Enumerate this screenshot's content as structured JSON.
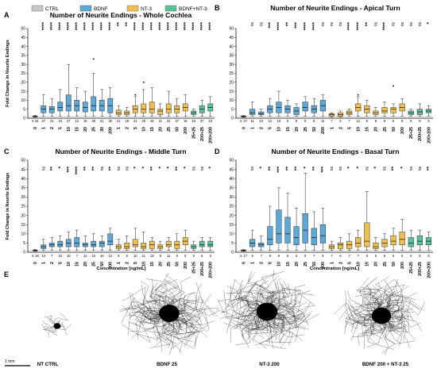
{
  "legend": {
    "items": [
      {
        "label": "CTRL",
        "color": "#c8c8c8"
      },
      {
        "label": "BDNF",
        "color": "#5aa9d8"
      },
      {
        "label": "NT-3",
        "color": "#f1c04c"
      },
      {
        "label": "BDNF+NT-3",
        "color": "#58c49a"
      }
    ]
  },
  "chart_data": [
    {
      "type": "box",
      "letter": "A",
      "title": "Number of Neurite Endings - Whole Cochlea",
      "ylabel": "Fold Change in Neurite Endings",
      "ylim": [
        0,
        50
      ],
      "yticks": [
        0,
        5,
        10,
        15,
        20,
        25,
        30,
        35,
        40,
        45,
        50
      ],
      "categories": [
        "0",
        "1",
        "2",
        "5",
        "10",
        "15",
        "20",
        "25",
        "30",
        "200",
        "1",
        "2",
        "5",
        "10",
        "15",
        "20",
        "25",
        "50",
        "200",
        "25+25",
        "200+25",
        "200+200"
      ],
      "groups": [
        "CTRL",
        "BDNF",
        "BDNF",
        "BDNF",
        "BDNF",
        "BDNF",
        "BDNF",
        "BDNF",
        "BDNF",
        "BDNF",
        "NT-3",
        "NT-3",
        "NT-3",
        "NT-3",
        "NT-3",
        "NT-3",
        "NT-3",
        "NT-3",
        "NT-3",
        "BDNF+NT-3",
        "BDNF+NT-3",
        "BDNF+NT-3"
      ],
      "n": [
        "n: 51",
        "27",
        "21",
        "24",
        "27",
        "12",
        "18",
        "25",
        "21",
        "30",
        "21",
        "18",
        "21",
        "25",
        "15",
        "21",
        "24",
        "27",
        "18",
        "18",
        "27",
        "18"
      ],
      "significance": [
        "",
        "****",
        "****",
        "****",
        "****",
        "****",
        "****",
        "****",
        "****",
        "****",
        "**",
        "**",
        "****",
        "****",
        "****",
        "****",
        "****",
        "****",
        "****",
        "****",
        "****",
        "****"
      ],
      "boxes": [
        [
          0.5,
          0.8,
          1,
          1.2,
          1.5
        ],
        [
          1,
          3,
          5,
          7,
          13
        ],
        [
          1,
          3,
          5,
          6.5,
          11
        ],
        [
          1,
          4,
          6,
          9,
          16
        ],
        [
          1,
          4,
          7,
          13,
          30
        ],
        [
          1,
          4,
          7,
          10,
          17
        ],
        [
          1,
          3.5,
          6,
          9,
          15
        ],
        [
          1,
          4,
          7,
          12,
          25
        ],
        [
          1,
          4,
          7,
          10,
          16
        ],
        [
          1,
          3,
          7,
          11,
          17
        ],
        [
          1,
          2,
          3,
          4.5,
          7
        ],
        [
          1,
          2,
          3,
          4,
          6
        ],
        [
          1,
          3,
          5,
          7,
          12
        ],
        [
          1,
          3,
          5,
          8,
          16
        ],
        [
          1,
          3,
          5,
          9,
          17
        ],
        [
          1,
          2,
          4,
          5,
          8
        ],
        [
          1,
          3,
          5,
          8,
          15
        ],
        [
          1,
          3,
          5,
          7,
          11
        ],
        [
          1,
          4,
          6,
          8,
          13
        ],
        [
          1,
          2,
          3,
          4,
          5
        ],
        [
          1,
          3,
          5,
          7,
          10
        ],
        [
          1,
          4,
          6,
          8,
          12
        ]
      ],
      "outliers": [
        [],
        [],
        [],
        [],
        [],
        [],
        [],
        [
          33
        ],
        [],
        [],
        [],
        [],
        [
          13
        ],
        [
          20
        ],
        [],
        [],
        [],
        [],
        [],
        [],
        [],
        []
      ]
    },
    {
      "type": "box",
      "letter": "B",
      "title": "Number of Neurite Endings - Apical Turn",
      "ylabel": "",
      "ylim": [
        0,
        50
      ],
      "yticks": [
        0,
        5,
        10,
        15,
        20,
        25,
        30,
        35,
        40,
        45,
        50
      ],
      "categories": [
        "0",
        "1",
        "2",
        "5",
        "10",
        "15",
        "20",
        "25",
        "50",
        "200",
        "1",
        "2",
        "5",
        "10",
        "15",
        "20",
        "25",
        "50",
        "200",
        "25+25",
        "200+25",
        "200+200"
      ],
      "groups": [
        "CTRL",
        "BDNF",
        "BDNF",
        "BDNF",
        "BDNF",
        "BDNF",
        "BDNF",
        "BDNF",
        "BDNF",
        "BDNF",
        "NT-3",
        "NT-3",
        "NT-3",
        "NT-3",
        "NT-3",
        "NT-3",
        "NT-3",
        "NT-3",
        "NT-3",
        "BDNF+NT-3",
        "BDNF+NT-3",
        "BDNF+NT-3"
      ],
      "n": [
        "n: 27",
        "11",
        "10",
        "12",
        "10",
        "6",
        "8",
        "9",
        "8",
        "11",
        "7",
        "6",
        "7",
        "12",
        "8",
        "8",
        "9",
        "6",
        "9",
        "6",
        "9",
        "6"
      ],
      "significance": [
        "",
        "ns",
        "ns",
        "***",
        "****",
        "**",
        "***",
        "****",
        "****",
        "ns",
        "ns",
        "ns",
        "****",
        "****",
        "**",
        "ns",
        "****",
        "ns",
        "ns",
        "ns",
        "ns",
        "*"
      ],
      "boxes": [
        [
          0.5,
          0.8,
          1,
          1.2,
          1.5
        ],
        [
          1,
          2,
          3,
          5,
          9
        ],
        [
          1,
          2,
          2.5,
          3.5,
          5
        ],
        [
          1,
          3,
          5,
          7,
          11
        ],
        [
          1,
          3,
          6,
          9,
          15
        ],
        [
          1,
          3,
          5,
          7,
          10
        ],
        [
          1,
          2,
          4,
          6,
          8
        ],
        [
          1,
          4,
          6,
          9,
          12
        ],
        [
          1,
          3,
          5,
          7,
          11
        ],
        [
          1,
          4,
          7,
          10,
          13
        ],
        [
          0.5,
          1,
          2,
          2.5,
          3
        ],
        [
          0.5,
          1,
          2,
          3,
          4
        ],
        [
          1,
          2,
          3,
          4,
          5
        ],
        [
          1,
          4,
          6,
          8,
          12
        ],
        [
          1,
          3,
          5,
          7,
          10
        ],
        [
          1,
          2,
          3,
          4,
          6
        ],
        [
          1,
          3,
          4,
          6,
          9
        ],
        [
          1,
          3,
          5,
          6,
          8
        ],
        [
          1,
          4,
          6,
          8,
          11
        ],
        [
          1,
          2,
          3,
          4,
          5
        ],
        [
          1,
          2,
          3.5,
          5,
          8
        ],
        [
          1,
          3,
          4,
          5,
          7
        ]
      ],
      "outliers": [
        [],
        [],
        [],
        [],
        [],
        [],
        [],
        [],
        [],
        [],
        [],
        [],
        [],
        [
          13
        ],
        [],
        [],
        [],
        [
          18
        ],
        [],
        [],
        [],
        []
      ]
    },
    {
      "type": "box",
      "letter": "C",
      "title": "Number of Neurite Endings - Middle Turn",
      "ylabel": "Fold Change in Neurite Endings",
      "ylim": [
        0,
        50
      ],
      "yticks": [
        0,
        5,
        10,
        15,
        20,
        25,
        30,
        35,
        40,
        45,
        50
      ],
      "categories": [
        "0",
        "1",
        "2",
        "5",
        "10",
        "15",
        "20",
        "25",
        "50",
        "200",
        "1",
        "2",
        "5",
        "10",
        "15",
        "20",
        "25",
        "50",
        "200",
        "25+25",
        "200+25",
        "200+200"
      ],
      "groups": [
        "CTRL",
        "BDNF",
        "BDNF",
        "BDNF",
        "BDNF",
        "BDNF",
        "BDNF",
        "BDNF",
        "BDNF",
        "BDNF",
        "NT-3",
        "NT-3",
        "NT-3",
        "NT-3",
        "NT-3",
        "NT-3",
        "NT-3",
        "NT-3",
        "NT-3",
        "BDNF+NT-3",
        "BDNF+NT-3",
        "BDNF+NT-3"
      ],
      "n": [
        "n: 28",
        "10",
        "7",
        "10",
        "10",
        "7",
        "12",
        "10",
        "10",
        "12",
        "9",
        "9",
        "10",
        "11",
        "13",
        "9",
        "11",
        "9",
        "6",
        "6",
        "6",
        "6"
      ],
      "significance": [
        "",
        "ns",
        "**",
        "*",
        "***",
        "****",
        "**",
        "**",
        "ns",
        "**",
        "ns",
        "ns",
        "*",
        "*",
        "**",
        "*",
        "*",
        "**",
        "*",
        "ns",
        "ns",
        "*"
      ],
      "boxes": [
        [
          0.5,
          0.8,
          1,
          1.2,
          1.5
        ],
        [
          1,
          2,
          3,
          4,
          7
        ],
        [
          1,
          3,
          4,
          5,
          8
        ],
        [
          1,
          3,
          4,
          6,
          9
        ],
        [
          1,
          3,
          5,
          7,
          11
        ],
        [
          1,
          3,
          5,
          8,
          12
        ],
        [
          1,
          3,
          4,
          5,
          9
        ],
        [
          1,
          3,
          4,
          6,
          10
        ],
        [
          1,
          3,
          5,
          6,
          9
        ],
        [
          1,
          4,
          6,
          10,
          13
        ],
        [
          1,
          2,
          3,
          4,
          7
        ],
        [
          1,
          2,
          3,
          5,
          9
        ],
        [
          1,
          3,
          4,
          7,
          13
        ],
        [
          1,
          2,
          3,
          5,
          11
        ],
        [
          1,
          2,
          4,
          6,
          8
        ],
        [
          1,
          2,
          3,
          4,
          6
        ],
        [
          1,
          3,
          4,
          6,
          8
        ],
        [
          1,
          2,
          4,
          6,
          10
        ],
        [
          1,
          4,
          6,
          8,
          12
        ],
        [
          1,
          2,
          3,
          4,
          6
        ],
        [
          1,
          3,
          4,
          6,
          8
        ],
        [
          1,
          3,
          4,
          6,
          8
        ]
      ],
      "outliers": [
        [],
        [],
        [],
        [],
        [],
        [],
        [],
        [],
        [],
        [],
        [],
        [],
        [],
        [],
        [],
        [],
        [],
        [],
        [],
        [],
        [],
        []
      ]
    },
    {
      "type": "box",
      "letter": "D",
      "title": "Number of Neurite Endings - Basal Turn",
      "ylabel": "",
      "ylim": [
        0,
        50
      ],
      "yticks": [
        0,
        5,
        10,
        15,
        20,
        25,
        30,
        35,
        40,
        45,
        50
      ],
      "categories": [
        "0",
        "1",
        "2",
        "5",
        "10",
        "15",
        "20",
        "25",
        "50",
        "200",
        "1",
        "2",
        "5",
        "10",
        "15",
        "20",
        "25",
        "50",
        "200",
        "25+25",
        "200+25",
        "200+200"
      ],
      "groups": [
        "CTRL",
        "BDNF",
        "BDNF",
        "BDNF",
        "BDNF",
        "BDNF",
        "BDNF",
        "BDNF",
        "BDNF",
        "BDNF",
        "NT-3",
        "NT-3",
        "NT-3",
        "NT-3",
        "NT-3",
        "NT-3",
        "NT-3",
        "NT-3",
        "NT-3",
        "BDNF+NT-3",
        "BDNF+NT-3",
        "BDNF+NT-3"
      ],
      "n": [
        "n: 17",
        "9",
        "7",
        "8",
        "9",
        "6",
        "6",
        "9",
        "7",
        "8",
        "7",
        "6",
        "7",
        "7",
        "8",
        "6",
        "6",
        "6",
        "6",
        "6",
        "6",
        "6"
      ],
      "significance": [
        "",
        "ns",
        "*",
        "**",
        "***",
        "**",
        "**",
        "*",
        "**",
        "***",
        "ns",
        "ns",
        "*",
        "*",
        "ns",
        "*",
        "ns",
        "**",
        "*",
        "ns",
        "ns",
        "**"
      ],
      "boxes": [
        [
          0.5,
          0.8,
          1,
          1.2,
          1.5
        ],
        [
          1,
          3,
          5,
          7,
          12
        ],
        [
          1,
          3,
          4,
          5,
          9
        ],
        [
          1,
          4,
          7,
          14,
          25
        ],
        [
          1,
          5,
          10,
          23,
          35
        ],
        [
          1,
          5,
          10,
          19,
          32
        ],
        [
          1,
          4,
          8,
          14,
          24
        ],
        [
          1,
          5,
          12,
          21,
          43
        ],
        [
          1,
          4,
          8,
          13,
          22
        ],
        [
          1,
          5,
          9,
          15,
          24
        ],
        [
          1,
          2,
          3,
          4,
          6
        ],
        [
          1,
          2,
          4,
          5,
          8
        ],
        [
          1,
          2,
          4,
          6,
          10
        ],
        [
          1,
          3,
          5,
          8,
          12
        ],
        [
          1,
          3,
          6,
          16,
          33
        ],
        [
          1,
          2,
          3,
          5,
          8
        ],
        [
          1,
          3,
          5,
          7,
          10
        ],
        [
          1,
          4,
          6,
          9,
          13
        ],
        [
          1,
          4,
          7,
          11,
          18
        ],
        [
          1,
          3,
          5,
          8,
          12
        ],
        [
          1,
          4,
          6,
          9,
          12
        ],
        [
          1,
          4,
          6,
          8,
          11
        ]
      ],
      "outliers": [
        [],
        [],
        [],
        [],
        [],
        [],
        [],
        [],
        [],
        [],
        [],
        [],
        [],
        [],
        [],
        [],
        [],
        [],
        [],
        [],
        [],
        []
      ]
    }
  ],
  "xlabel": "Concentration [ng/mL]",
  "panel_e": {
    "letter": "E",
    "scale_label": "1 mm",
    "images": [
      {
        "label": "NT CTRL"
      },
      {
        "label": "BDNF 25"
      },
      {
        "label": "NT-3 200"
      },
      {
        "label": "BDNF 200 + NT-3 25"
      }
    ]
  }
}
